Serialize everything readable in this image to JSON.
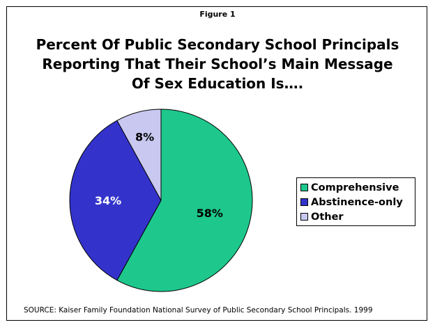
{
  "figure_label": "Figure 1",
  "title_lines": [
    "Percent Of Public Secondary School Principals",
    "Reporting That Their School’s Main Message",
    "Of Sex Education Is…."
  ],
  "source": "SOURCE:  Kaiser Family Foundation National Survey of Public Secondary School Principals. 1999",
  "chart_data": {
    "type": "pie",
    "title": "Percent Of Public Secondary School Principals Reporting That Their School’s Main Message Of Sex Education Is….",
    "slices": [
      {
        "name": "Comprehensive",
        "value": 58,
        "label": "58%",
        "color": "#1ec88c"
      },
      {
        "name": "Abstinence-only",
        "value": 34,
        "label": "34%",
        "color": "#3333cc"
      },
      {
        "name": "Other",
        "value": 8,
        "label": "8%",
        "color": "#c8c8f0"
      }
    ],
    "label_colors": [
      "#000000",
      "#ffffff",
      "#000000"
    ],
    "legend_position": "right"
  }
}
